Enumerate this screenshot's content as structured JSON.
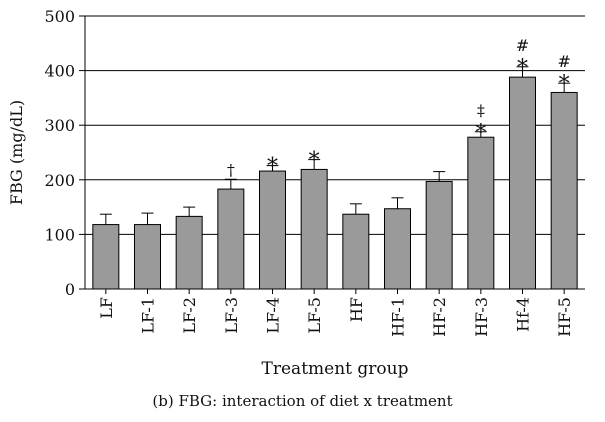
{
  "chart_data": {
    "type": "bar",
    "categories": [
      "LF",
      "LF-1",
      "LF-2",
      "LF-3",
      "LF-4",
      "LF-5",
      "HF",
      "HF-1",
      "HF-2",
      "HF-3",
      "Hf-4",
      "HF-5"
    ],
    "series": [
      {
        "values": [
          118,
          118,
          133,
          183,
          216,
          219,
          137,
          147,
          197,
          278,
          388,
          360
        ],
        "errors": [
          19,
          21,
          17,
          18,
          10,
          18,
          19,
          20,
          18,
          10,
          19,
          17
        ],
        "color": "#9a9a9a"
      }
    ],
    "annotations": [
      {
        "category": "LF-3",
        "marks": [
          "†"
        ]
      },
      {
        "category": "LF-4",
        "marks": [
          "*"
        ]
      },
      {
        "category": "LF-5",
        "marks": [
          "*"
        ]
      },
      {
        "category": "HF-3",
        "marks": [
          "‡",
          "*"
        ]
      },
      {
        "category": "Hf-4",
        "marks": [
          "#",
          "*"
        ]
      },
      {
        "category": "HF-5",
        "marks": [
          "#",
          "*"
        ]
      }
    ],
    "title": "",
    "xlabel": "Treatment group",
    "ylabel": "FBG (mg/dL)",
    "ylim": [
      0,
      500
    ],
    "yticks": [
      0,
      100,
      200,
      300,
      400,
      500
    ],
    "grid": true,
    "caption": "(b)  FBG: interaction of diet x treatment"
  }
}
